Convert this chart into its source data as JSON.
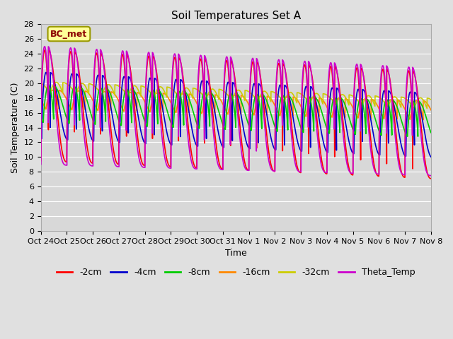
{
  "title": "Soil Temperatures Set A",
  "xlabel": "Time",
  "ylabel": "Soil Temperature (C)",
  "ylim": [
    0,
    28
  ],
  "fig_bg": "#e0e0e0",
  "plot_bg": "#d8d8d8",
  "annotation_text": "BC_met",
  "annotation_color": "#8b0000",
  "annotation_bg": "#ffff99",
  "annotation_edge": "#999900",
  "series": [
    {
      "label": "-2cm",
      "color": "#ff0000",
      "lw": 1.2,
      "zorder": 4
    },
    {
      "label": "-4cm",
      "color": "#0000cc",
      "lw": 1.2,
      "zorder": 3
    },
    {
      "label": "-8cm",
      "color": "#00cc00",
      "lw": 1.2,
      "zorder": 3
    },
    {
      "label": "-16cm",
      "color": "#ff8800",
      "lw": 1.2,
      "zorder": 2
    },
    {
      "label": "-32cm",
      "color": "#cccc00",
      "lw": 1.2,
      "zorder": 2
    },
    {
      "label": "Theta_Temp",
      "color": "#cc00cc",
      "lw": 1.2,
      "zorder": 5
    }
  ],
  "xtick_labels": [
    "Oct 24",
    "Oct 25",
    "Oct 26",
    "Oct 27",
    "Oct 28",
    "Oct 29",
    "Oct 30",
    "Oct 31",
    "Nov 1",
    "Nov 2",
    "Nov 3",
    "Nov 4",
    "Nov 5",
    "Nov 6",
    "Nov 7",
    "Nov 8"
  ],
  "grid_color": "#ffffff",
  "title_fontsize": 11,
  "tick_fontsize": 8,
  "axis_label_fontsize": 9,
  "legend_fontsize": 9
}
